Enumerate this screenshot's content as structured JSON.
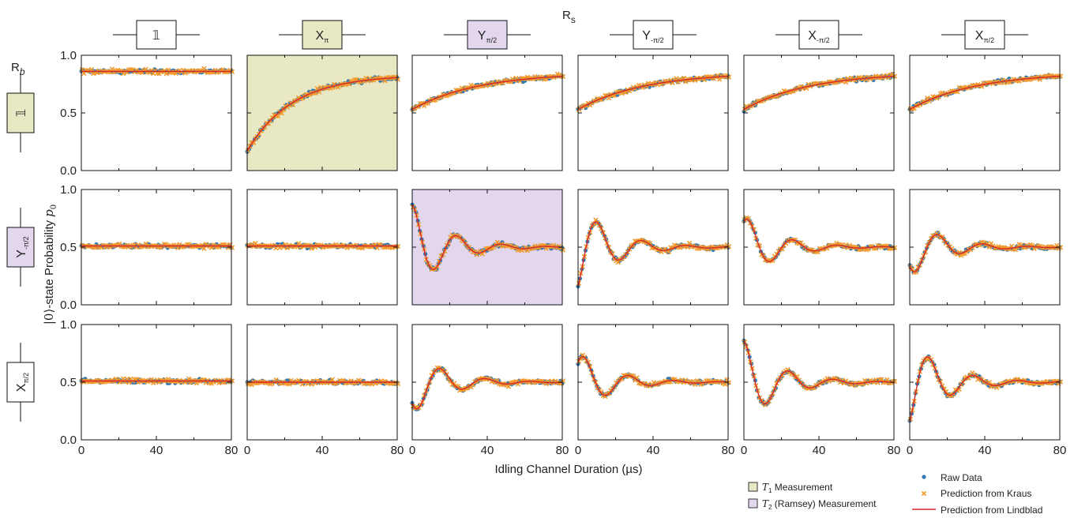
{
  "figure": {
    "col_header_title": "R",
    "col_header_title_sub": "s",
    "row_header_title": "R",
    "row_header_title_sub": "b",
    "xlabel": "Idling Channel Duration (µs)",
    "ylabel_ket": "|0⟩",
    "ylabel_text": "-state Probability ",
    "ylabel_var": "p",
    "ylabel_var_sub": "0"
  },
  "col_gates": [
    {
      "main": "𝟙",
      "sub": "",
      "fill": "#ffffff"
    },
    {
      "main": "X",
      "sub": "π",
      "fill": "#e9e8c4"
    },
    {
      "main": "Y",
      "sub": "π/2",
      "fill": "#e3d7ee"
    },
    {
      "main": "Y",
      "sub": "-π/2",
      "fill": "#ffffff"
    },
    {
      "main": "X",
      "sub": "-π/2",
      "fill": "#ffffff"
    },
    {
      "main": "X",
      "sub": "π/2",
      "fill": "#ffffff"
    }
  ],
  "row_gates": [
    {
      "main": "𝟙",
      "sub": "",
      "fill": "#e9e8c4"
    },
    {
      "main": "Y",
      "sub": "-π/2",
      "fill": "#e3d7ee"
    },
    {
      "main": "X",
      "sub": "π/2",
      "fill": "#ffffff"
    }
  ],
  "legend": {
    "t1_var": "T",
    "t1_sub": "1",
    "t1_text": " Measurement",
    "t2_var": "T",
    "t2_sub": "2",
    "t2_text": " (Ramsey) Measurement",
    "raw": "Raw Data",
    "kraus": "Prediction from Kraus",
    "lindblad": "Prediction from Lindblad"
  },
  "colors": {
    "raw": "#2f78b3",
    "kraus": "#f39a2c",
    "lindblad": "#d62728",
    "t1": "#e9e8c4",
    "t2": "#e3d7ee"
  },
  "chart_data": {
    "type": "scatter",
    "grid": "3x6 panels",
    "xlim": [
      0,
      80
    ],
    "ylim": [
      0,
      1
    ],
    "xticks": [
      "0",
      "40",
      "80"
    ],
    "yticks": [
      "0.0",
      "0.5",
      "1.0"
    ],
    "xlabel": "Idling Channel Duration (µs)",
    "ylabel": "|0⟩-state Probability p0",
    "series": [
      "Raw Data",
      "Prediction from Kraus",
      "Prediction from Lindblad"
    ],
    "panels": [
      {
        "row": 0,
        "col": 0,
        "highlight": "",
        "model": "const",
        "params": {
          "c": 0.86
        }
      },
      {
        "row": 0,
        "col": 1,
        "highlight": "t1",
        "model": "t1",
        "params": {
          "a": 0.83,
          "b": 0.17,
          "tau": 24
        }
      },
      {
        "row": 0,
        "col": 2,
        "highlight": "",
        "model": "t1",
        "params": {
          "a": 0.85,
          "b": 0.53,
          "tau": 35
        }
      },
      {
        "row": 0,
        "col": 3,
        "highlight": "",
        "model": "t1",
        "params": {
          "a": 0.85,
          "b": 0.53,
          "tau": 35
        }
      },
      {
        "row": 0,
        "col": 4,
        "highlight": "",
        "model": "t1",
        "params": {
          "a": 0.85,
          "b": 0.53,
          "tau": 35
        }
      },
      {
        "row": 0,
        "col": 5,
        "highlight": "",
        "model": "t1",
        "params": {
          "a": 0.85,
          "b": 0.53,
          "tau": 35
        }
      },
      {
        "row": 1,
        "col": 0,
        "highlight": "",
        "model": "const",
        "params": {
          "c": 0.51
        }
      },
      {
        "row": 1,
        "col": 1,
        "highlight": "",
        "model": "const",
        "params": {
          "c": 0.51
        }
      },
      {
        "row": 1,
        "col": 2,
        "highlight": "t2",
        "model": "ramsey",
        "params": {
          "A": 0.37,
          "tau": 18,
          "period": 24,
          "phase": 0
        }
      },
      {
        "row": 1,
        "col": 3,
        "highlight": "",
        "model": "ramsey",
        "params": {
          "A": -0.38,
          "tau": 18,
          "period": 24,
          "phase": 0.45
        }
      },
      {
        "row": 1,
        "col": 4,
        "highlight": "",
        "model": "ramsey",
        "params": {
          "A": 0.27,
          "tau": 18,
          "period": 24,
          "phase": -0.6
        }
      },
      {
        "row": 1,
        "col": 5,
        "highlight": "",
        "model": "ramsey",
        "params": {
          "A": -0.25,
          "tau": 18,
          "period": 24,
          "phase": -0.85
        }
      },
      {
        "row": 2,
        "col": 0,
        "highlight": "",
        "model": "const",
        "params": {
          "c": 0.51
        }
      },
      {
        "row": 2,
        "col": 1,
        "highlight": "",
        "model": "const",
        "params": {
          "c": 0.5
        }
      },
      {
        "row": 2,
        "col": 2,
        "highlight": "",
        "model": "ramsey",
        "params": {
          "A": 0.27,
          "tau": 18,
          "period": 24,
          "phase": 2.3
        }
      },
      {
        "row": 2,
        "col": 3,
        "highlight": "",
        "model": "ramsey",
        "params": {
          "A": 0.26,
          "tau": 18,
          "period": 24,
          "phase": -0.85
        }
      },
      {
        "row": 2,
        "col": 4,
        "highlight": "",
        "model": "ramsey",
        "params": {
          "A": 0.36,
          "tau": 18,
          "period": 24,
          "phase": 0
        }
      },
      {
        "row": 2,
        "col": 5,
        "highlight": "",
        "model": "ramsey",
        "params": {
          "A": -0.38,
          "tau": 18,
          "period": 24,
          "phase": 0.45
        }
      }
    ]
  }
}
